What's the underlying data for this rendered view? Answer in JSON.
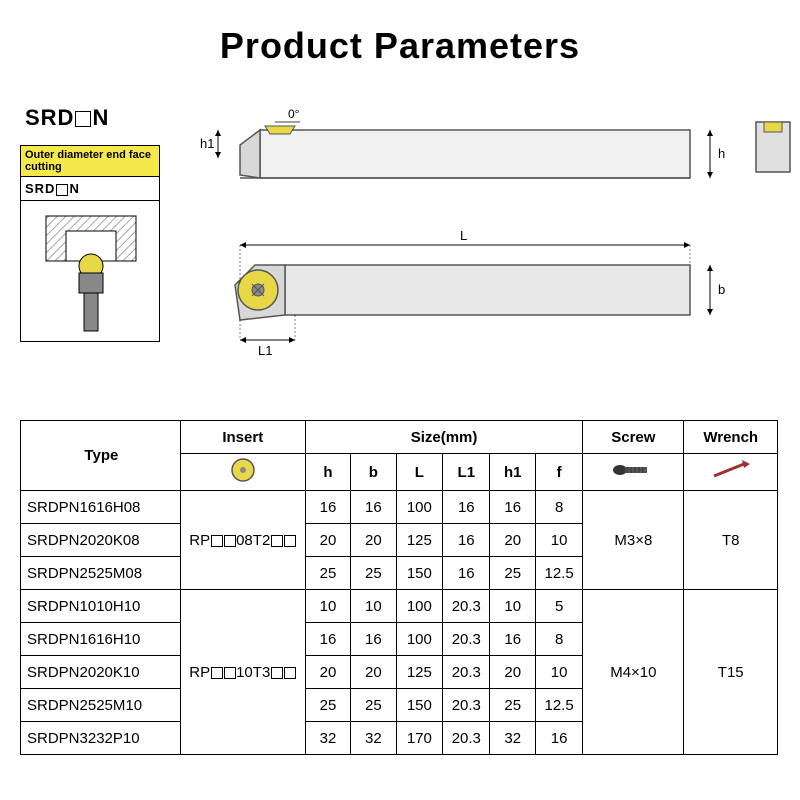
{
  "title": "Product Parameters",
  "model_prefix": "SRD",
  "model_suffix": "N",
  "panel": {
    "header": "Outer diameter end face cutting",
    "sub_prefix": "SRD",
    "sub_suffix": "N"
  },
  "diagram_labels": {
    "h1": "h1",
    "h": "h",
    "angle": "0°",
    "L": "L",
    "L1": "L1",
    "b": "b"
  },
  "colors": {
    "yellow": "#e8d848",
    "tool_gray": "#888888",
    "tool_dark": "#6a6a6a",
    "hatch": "#999999"
  },
  "table": {
    "headers": {
      "type": "Type",
      "insert": "Insert",
      "size": "Size(mm)",
      "screw": "Screw",
      "wrench": "Wrench",
      "h": "h",
      "b": "b",
      "L": "L",
      "L1": "L1",
      "h1": "h1",
      "f": "f"
    },
    "groups": [
      {
        "insert_prefix": "RP",
        "insert_mid": "08T2",
        "screw": "M3×8",
        "wrench": "T8",
        "rows": [
          {
            "type": "SRDPN1616H08",
            "h": "16",
            "b": "16",
            "L": "100",
            "L1": "16",
            "h1": "16",
            "f": "8"
          },
          {
            "type": "SRDPN2020K08",
            "h": "20",
            "b": "20",
            "L": "125",
            "L1": "16",
            "h1": "20",
            "f": "10"
          },
          {
            "type": "SRDPN2525M08",
            "h": "25",
            "b": "25",
            "L": "150",
            "L1": "16",
            "h1": "25",
            "f": "12.5"
          }
        ]
      },
      {
        "insert_prefix": "RP",
        "insert_mid": "10T3",
        "screw": "M4×10",
        "wrench": "T15",
        "rows": [
          {
            "type": "SRDPN1010H10",
            "h": "10",
            "b": "10",
            "L": "100",
            "L1": "20.3",
            "h1": "10",
            "f": "5"
          },
          {
            "type": "SRDPN1616H10",
            "h": "16",
            "b": "16",
            "L": "100",
            "L1": "20.3",
            "h1": "16",
            "f": "8"
          },
          {
            "type": "SRDPN2020K10",
            "h": "20",
            "b": "20",
            "L": "125",
            "L1": "20.3",
            "h1": "20",
            "f": "10"
          },
          {
            "type": "SRDPN2525M10",
            "h": "25",
            "b": "25",
            "L": "150",
            "L1": "20.3",
            "h1": "25",
            "f": "12.5"
          },
          {
            "type": "SRDPN3232P10",
            "h": "32",
            "b": "32",
            "L": "170",
            "L1": "20.3",
            "h1": "32",
            "f": "16"
          }
        ]
      }
    ]
  }
}
